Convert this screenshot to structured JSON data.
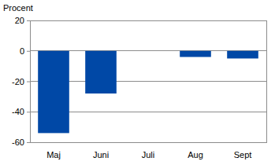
{
  "chart_data": {
    "type": "bar",
    "ylabel": "Procent",
    "categories": [
      "Maj",
      "Juni",
      "Juli",
      "Aug",
      "Sept"
    ],
    "values": [
      -54,
      -28,
      0,
      -4,
      -5
    ],
    "color": "#0048a6",
    "ylim": [
      -60,
      20
    ],
    "yticks": [
      -60,
      -40,
      -20,
      0,
      20
    ],
    "grid": true
  }
}
